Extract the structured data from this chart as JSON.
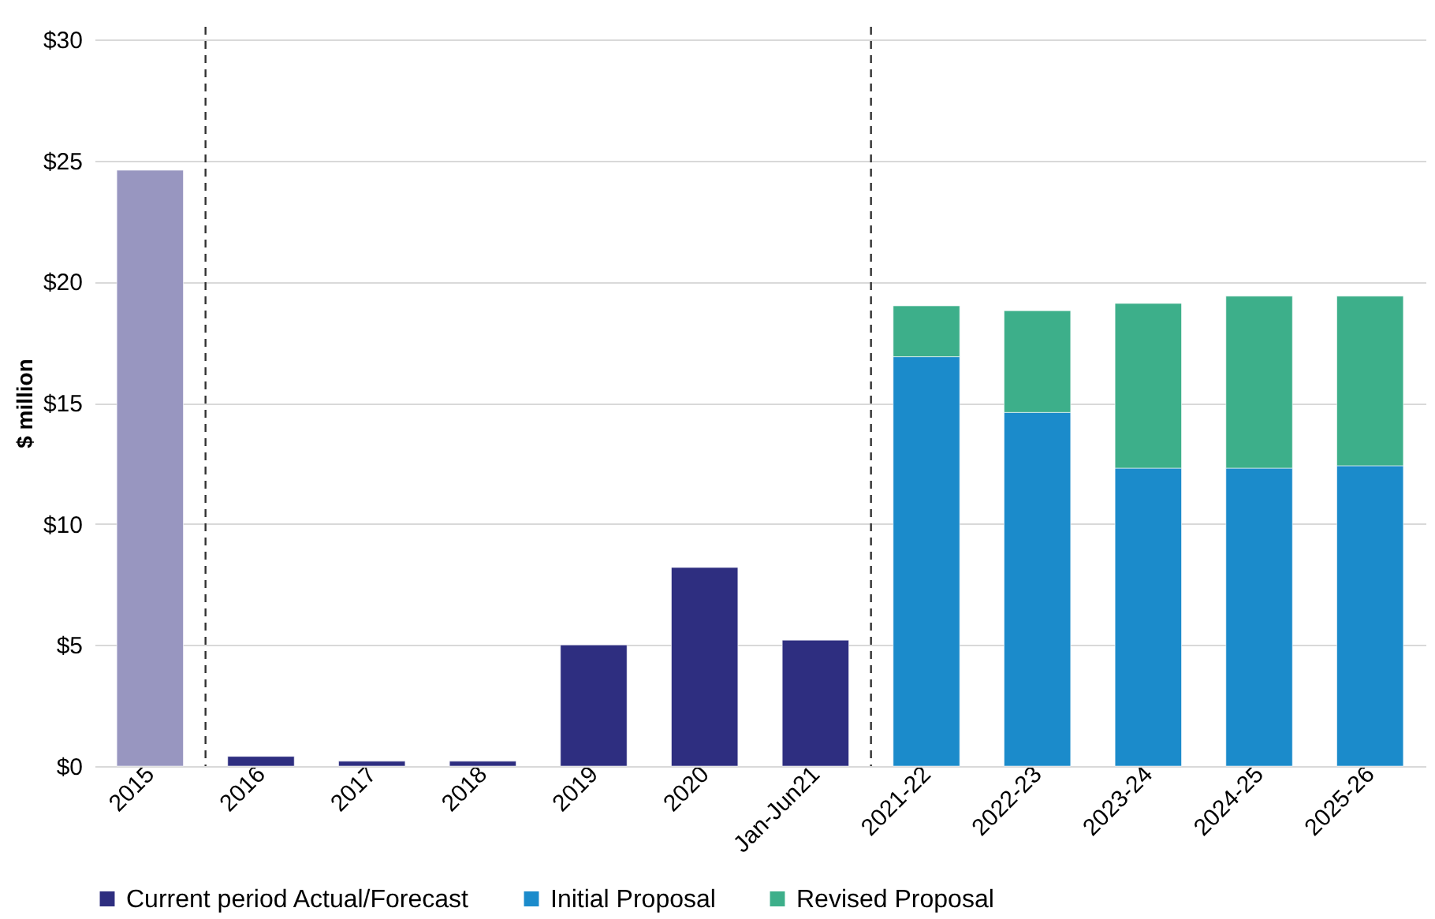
{
  "chart_data": {
    "type": "bar",
    "ylabel": "$ million",
    "stacked": true,
    "grid": "y",
    "legend": "bottom",
    "categories": [
      "2015",
      "2016",
      "2017",
      "2018",
      "2019",
      "2020",
      "Jan-Jun21",
      "2021-22",
      "2022-23",
      "2023-24",
      "2024-25",
      "2025-26"
    ],
    "series": [
      {
        "color": "#9896c0",
        "values": [
          24.6,
          null,
          null,
          null,
          null,
          null,
          null,
          null,
          null,
          null,
          null,
          null
        ]
      },
      {
        "name": "Current period Actual/Forecast",
        "color": "#2e2e80",
        "values": [
          null,
          0.4,
          0.2,
          0.2,
          5.0,
          8.2,
          5.2,
          null,
          null,
          null,
          null,
          null
        ]
      },
      {
        "name": "Initial Proposal",
        "color": "#1b8bcb",
        "values": [
          null,
          null,
          null,
          null,
          null,
          null,
          null,
          16.9,
          14.6,
          12.3,
          12.3,
          12.4
        ]
      },
      {
        "name": "Revised Proposal",
        "color": "#3daf8a",
        "values": [
          null,
          null,
          null,
          null,
          null,
          null,
          null,
          2.1,
          4.2,
          6.8,
          7.1,
          7.0
        ]
      }
    ],
    "ylim": [
      0,
      30
    ],
    "yticks": [
      {
        "value": 0,
        "label": "$0"
      },
      {
        "value": 5,
        "label": "$5"
      },
      {
        "value": 10,
        "label": "$10"
      },
      {
        "value": 15,
        "label": "$15"
      },
      {
        "value": 20,
        "label": "$20"
      },
      {
        "value": 25,
        "label": "$25"
      },
      {
        "value": 30,
        "label": "$30"
      }
    ],
    "ref_lines": [
      {
        "axis": "x",
        "value": "2016",
        "color": "#333333",
        "line_style": "dashed"
      },
      {
        "axis": "x",
        "value": "2021-22",
        "color": "#333333",
        "line_style": "dashed"
      }
    ]
  }
}
